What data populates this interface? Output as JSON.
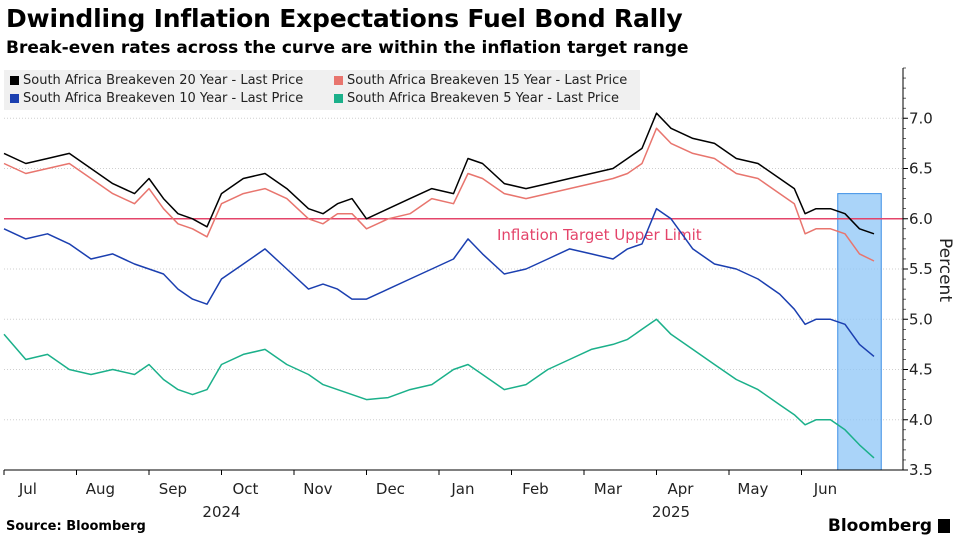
{
  "header": {
    "title": "Dwindling Inflation Expectations Fuel Bond Rally",
    "subtitle": "Break-even rates across the curve are within the inflation target range"
  },
  "footer": {
    "source": "Source: Bloomberg",
    "brand": "Bloomberg"
  },
  "chart_data": {
    "type": "line",
    "ylabel": "Percent",
    "ylim": [
      3.5,
      7.5
    ],
    "yticks": [
      3.5,
      4.0,
      4.5,
      5.0,
      5.5,
      6.0,
      6.5,
      7.0
    ],
    "xlim": [
      0,
      12.4
    ],
    "month_ticks": [
      {
        "label": "Jul",
        "x": 0.33
      },
      {
        "label": "Aug",
        "x": 1.33
      },
      {
        "label": "Sep",
        "x": 2.33
      },
      {
        "label": "Oct",
        "x": 3.33
      },
      {
        "label": "Nov",
        "x": 4.33
      },
      {
        "label": "Dec",
        "x": 5.33
      },
      {
        "label": "Jan",
        "x": 6.33
      },
      {
        "label": "Feb",
        "x": 7.33
      },
      {
        "label": "Mar",
        "x": 8.33
      },
      {
        "label": "Apr",
        "x": 9.33
      },
      {
        "label": "May",
        "x": 10.33
      },
      {
        "label": "Jun",
        "x": 11.33
      }
    ],
    "year_labels": [
      {
        "label": "2024",
        "x": 3.0
      },
      {
        "label": "2025",
        "x": 9.2
      }
    ],
    "reference_line": {
      "value": 6.0,
      "label": "Inflation Target Upper Limit",
      "label_x": 6.8,
      "color": "#e4446a"
    },
    "highlight": {
      "x_start": 11.5,
      "x_end": 12.1,
      "y_start": 3.5,
      "y_end": 6.25,
      "color": "#8ec6f7"
    },
    "series": [
      {
        "name": "South Africa Breakeven 20 Year - Last Price",
        "color": "#000000",
        "points": [
          [
            0,
            6.65
          ],
          [
            0.3,
            6.55
          ],
          [
            0.6,
            6.6
          ],
          [
            0.9,
            6.65
          ],
          [
            1.2,
            6.5
          ],
          [
            1.5,
            6.35
          ],
          [
            1.8,
            6.25
          ],
          [
            2.0,
            6.4
          ],
          [
            2.2,
            6.2
          ],
          [
            2.4,
            6.05
          ],
          [
            2.6,
            6.0
          ],
          [
            2.8,
            5.92
          ],
          [
            3.0,
            6.25
          ],
          [
            3.3,
            6.4
          ],
          [
            3.6,
            6.45
          ],
          [
            3.9,
            6.3
          ],
          [
            4.2,
            6.1
          ],
          [
            4.4,
            6.05
          ],
          [
            4.6,
            6.15
          ],
          [
            4.8,
            6.2
          ],
          [
            5.0,
            6.0
          ],
          [
            5.3,
            6.1
          ],
          [
            5.6,
            6.2
          ],
          [
            5.9,
            6.3
          ],
          [
            6.2,
            6.25
          ],
          [
            6.4,
            6.6
          ],
          [
            6.6,
            6.55
          ],
          [
            6.9,
            6.35
          ],
          [
            7.2,
            6.3
          ],
          [
            7.5,
            6.35
          ],
          [
            7.8,
            6.4
          ],
          [
            8.1,
            6.45
          ],
          [
            8.4,
            6.5
          ],
          [
            8.6,
            6.6
          ],
          [
            8.8,
            6.7
          ],
          [
            9.0,
            7.05
          ],
          [
            9.2,
            6.9
          ],
          [
            9.5,
            6.8
          ],
          [
            9.8,
            6.75
          ],
          [
            10.1,
            6.6
          ],
          [
            10.4,
            6.55
          ],
          [
            10.7,
            6.4
          ],
          [
            10.9,
            6.3
          ],
          [
            11.05,
            6.05
          ],
          [
            11.2,
            6.1
          ],
          [
            11.4,
            6.1
          ],
          [
            11.6,
            6.05
          ],
          [
            11.8,
            5.9
          ],
          [
            12.0,
            5.85
          ]
        ]
      },
      {
        "name": "South Africa Breakeven 15 Year - Last Price",
        "color": "#e8756e",
        "points": [
          [
            0,
            6.55
          ],
          [
            0.3,
            6.45
          ],
          [
            0.6,
            6.5
          ],
          [
            0.9,
            6.55
          ],
          [
            1.2,
            6.4
          ],
          [
            1.5,
            6.25
          ],
          [
            1.8,
            6.15
          ],
          [
            2.0,
            6.3
          ],
          [
            2.2,
            6.1
          ],
          [
            2.4,
            5.95
          ],
          [
            2.6,
            5.9
          ],
          [
            2.8,
            5.82
          ],
          [
            3.0,
            6.15
          ],
          [
            3.3,
            6.25
          ],
          [
            3.6,
            6.3
          ],
          [
            3.9,
            6.2
          ],
          [
            4.2,
            6.0
          ],
          [
            4.4,
            5.95
          ],
          [
            4.6,
            6.05
          ],
          [
            4.8,
            6.05
          ],
          [
            5.0,
            5.9
          ],
          [
            5.3,
            6.0
          ],
          [
            5.6,
            6.05
          ],
          [
            5.9,
            6.2
          ],
          [
            6.2,
            6.15
          ],
          [
            6.4,
            6.45
          ],
          [
            6.6,
            6.4
          ],
          [
            6.9,
            6.25
          ],
          [
            7.2,
            6.2
          ],
          [
            7.5,
            6.25
          ],
          [
            7.8,
            6.3
          ],
          [
            8.1,
            6.35
          ],
          [
            8.4,
            6.4
          ],
          [
            8.6,
            6.45
          ],
          [
            8.8,
            6.55
          ],
          [
            9.0,
            6.9
          ],
          [
            9.2,
            6.75
          ],
          [
            9.5,
            6.65
          ],
          [
            9.8,
            6.6
          ],
          [
            10.1,
            6.45
          ],
          [
            10.4,
            6.4
          ],
          [
            10.7,
            6.25
          ],
          [
            10.9,
            6.15
          ],
          [
            11.05,
            5.85
          ],
          [
            11.2,
            5.9
          ],
          [
            11.4,
            5.9
          ],
          [
            11.6,
            5.85
          ],
          [
            11.8,
            5.65
          ],
          [
            12.0,
            5.58
          ]
        ]
      },
      {
        "name": "South Africa Breakeven 10 Year - Last Price",
        "color": "#1b3fb0",
        "points": [
          [
            0,
            5.9
          ],
          [
            0.3,
            5.8
          ],
          [
            0.6,
            5.85
          ],
          [
            0.9,
            5.75
          ],
          [
            1.2,
            5.6
          ],
          [
            1.5,
            5.65
          ],
          [
            1.8,
            5.55
          ],
          [
            2.0,
            5.5
          ],
          [
            2.2,
            5.45
          ],
          [
            2.4,
            5.3
          ],
          [
            2.6,
            5.2
          ],
          [
            2.8,
            5.15
          ],
          [
            3.0,
            5.4
          ],
          [
            3.3,
            5.55
          ],
          [
            3.6,
            5.7
          ],
          [
            3.9,
            5.5
          ],
          [
            4.2,
            5.3
          ],
          [
            4.4,
            5.35
          ],
          [
            4.6,
            5.3
          ],
          [
            4.8,
            5.2
          ],
          [
            5.0,
            5.2
          ],
          [
            5.3,
            5.3
          ],
          [
            5.6,
            5.4
          ],
          [
            5.9,
            5.5
          ],
          [
            6.2,
            5.6
          ],
          [
            6.4,
            5.8
          ],
          [
            6.6,
            5.65
          ],
          [
            6.9,
            5.45
          ],
          [
            7.2,
            5.5
          ],
          [
            7.5,
            5.6
          ],
          [
            7.8,
            5.7
          ],
          [
            8.1,
            5.65
          ],
          [
            8.4,
            5.6
          ],
          [
            8.6,
            5.7
          ],
          [
            8.8,
            5.75
          ],
          [
            9.0,
            6.1
          ],
          [
            9.2,
            6.0
          ],
          [
            9.5,
            5.7
          ],
          [
            9.8,
            5.55
          ],
          [
            10.1,
            5.5
          ],
          [
            10.4,
            5.4
          ],
          [
            10.7,
            5.25
          ],
          [
            10.9,
            5.1
          ],
          [
            11.05,
            4.95
          ],
          [
            11.2,
            5.0
          ],
          [
            11.4,
            5.0
          ],
          [
            11.6,
            4.95
          ],
          [
            11.8,
            4.75
          ],
          [
            12.0,
            4.63
          ]
        ]
      },
      {
        "name": "South Africa Breakeven 5 Year - Last Price",
        "color": "#1bb08a",
        "points": [
          [
            0,
            4.85
          ],
          [
            0.3,
            4.6
          ],
          [
            0.6,
            4.65
          ],
          [
            0.9,
            4.5
          ],
          [
            1.2,
            4.45
          ],
          [
            1.5,
            4.5
          ],
          [
            1.8,
            4.45
          ],
          [
            2.0,
            4.55
          ],
          [
            2.2,
            4.4
          ],
          [
            2.4,
            4.3
          ],
          [
            2.6,
            4.25
          ],
          [
            2.8,
            4.3
          ],
          [
            3.0,
            4.55
          ],
          [
            3.3,
            4.65
          ],
          [
            3.6,
            4.7
          ],
          [
            3.9,
            4.55
          ],
          [
            4.2,
            4.45
          ],
          [
            4.4,
            4.35
          ],
          [
            4.6,
            4.3
          ],
          [
            4.8,
            4.25
          ],
          [
            5.0,
            4.2
          ],
          [
            5.3,
            4.22
          ],
          [
            5.6,
            4.3
          ],
          [
            5.9,
            4.35
          ],
          [
            6.2,
            4.5
          ],
          [
            6.4,
            4.55
          ],
          [
            6.6,
            4.45
          ],
          [
            6.9,
            4.3
          ],
          [
            7.2,
            4.35
          ],
          [
            7.5,
            4.5
          ],
          [
            7.8,
            4.6
          ],
          [
            8.1,
            4.7
          ],
          [
            8.4,
            4.75
          ],
          [
            8.6,
            4.8
          ],
          [
            8.8,
            4.9
          ],
          [
            9.0,
            5.0
          ],
          [
            9.2,
            4.85
          ],
          [
            9.5,
            4.7
          ],
          [
            9.8,
            4.55
          ],
          [
            10.1,
            4.4
          ],
          [
            10.4,
            4.3
          ],
          [
            10.7,
            4.15
          ],
          [
            10.9,
            4.05
          ],
          [
            11.05,
            3.95
          ],
          [
            11.2,
            4.0
          ],
          [
            11.4,
            4.0
          ],
          [
            11.6,
            3.9
          ],
          [
            11.8,
            3.75
          ],
          [
            12.0,
            3.62
          ]
        ]
      }
    ]
  }
}
